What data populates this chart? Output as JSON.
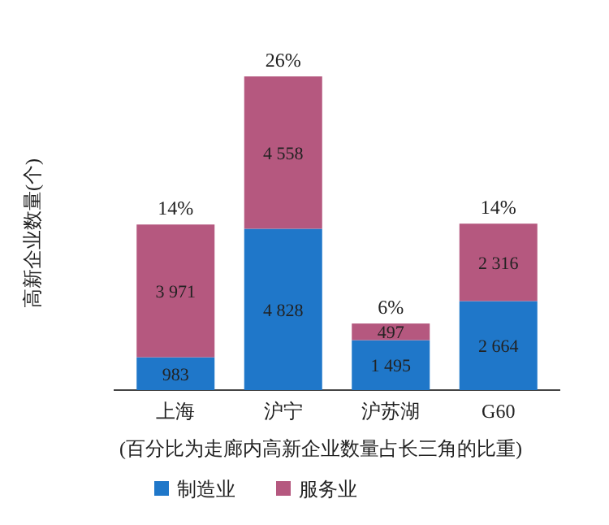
{
  "chart_data": {
    "type": "bar",
    "stacked": true,
    "ylabel": "高新企业数量(个)",
    "categories": [
      "上海",
      "沪宁",
      "沪苏湖",
      "G60"
    ],
    "series": [
      {
        "name": "制造业",
        "color": "#1f77c9",
        "values": [
          983,
          4828,
          1495,
          2664
        ],
        "value_labels": [
          "983",
          "4 828",
          "1 495",
          "2 664"
        ]
      },
      {
        "name": "服务业",
        "color": "#b5587f",
        "values": [
          3971,
          4558,
          497,
          2316
        ],
        "value_labels": [
          "3 971",
          "4 558",
          "497",
          "2 316"
        ]
      }
    ],
    "annotations": [
      {
        "text": "14%",
        "x": "上海",
        "y": 4954
      },
      {
        "text": "26%",
        "x": "沪宁",
        "y": 9386
      },
      {
        "text": "6%",
        "x": "沪苏湖",
        "y": 1992
      },
      {
        "text": "14%",
        "x": "G60",
        "y": 4980
      },
      "(百分比为走廊内高新企业数量占长三角的比重)"
    ],
    "legend": "bottom"
  }
}
